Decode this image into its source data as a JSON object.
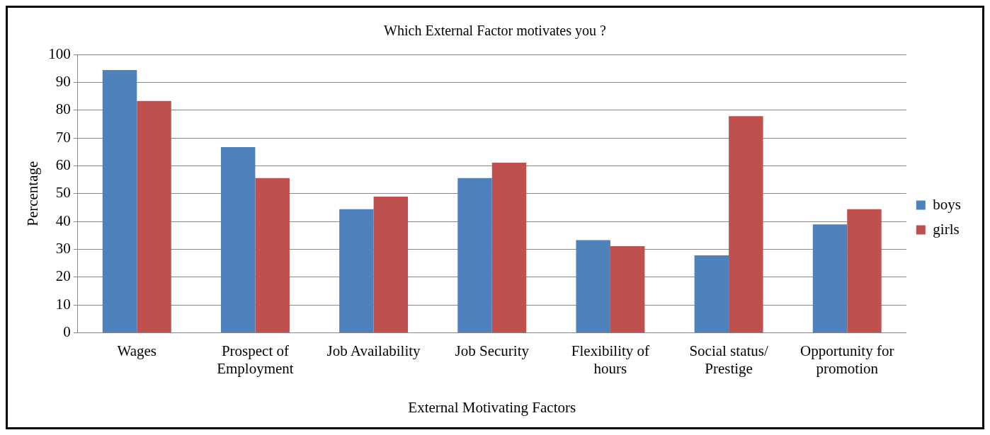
{
  "chart_data": {
    "type": "bar",
    "title": "Which External Factor motivates you ?",
    "xlabel": "External Motivating Factors",
    "ylabel": "Percentage",
    "categories": [
      "Wages",
      "Prospect of Employment",
      "Job Availability",
      "Job Security",
      "Flexibility of hours",
      "Social status/ Prestige",
      "Opportunity for promotion"
    ],
    "series": [
      {
        "name": "boys",
        "color": "#4f81bd",
        "values": [
          94.4,
          66.7,
          44.4,
          55.6,
          33.3,
          27.8,
          38.9
        ]
      },
      {
        "name": "girls",
        "color": "#c0504d",
        "values": [
          83.3,
          55.6,
          48.9,
          61.1,
          31.1,
          77.8,
          44.4
        ]
      }
    ],
    "ylim": [
      0,
      100
    ],
    "yticks": [
      0,
      10,
      20,
      30,
      40,
      50,
      60,
      70,
      80,
      90,
      100
    ],
    "grid": "y",
    "legend": "right"
  }
}
